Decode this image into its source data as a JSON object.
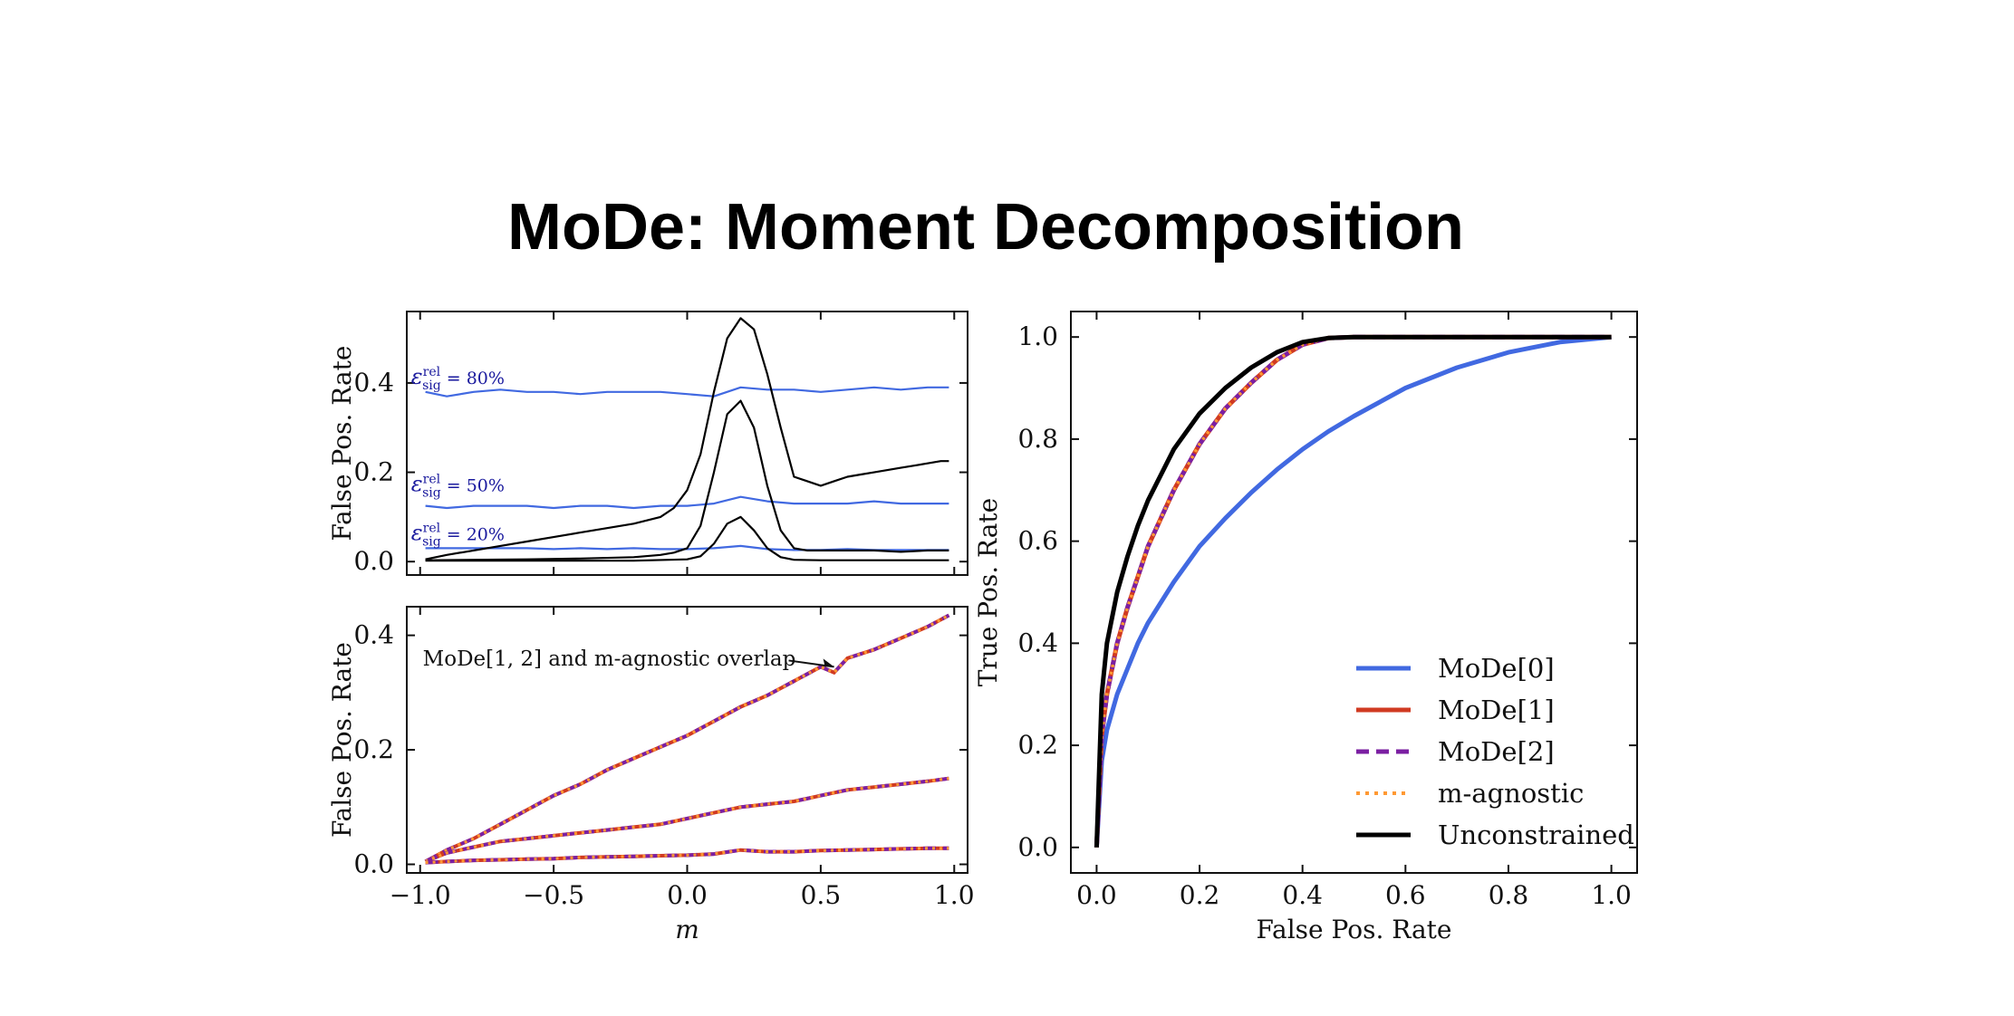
{
  "title": "MoDe: Moment Decomposition",
  "colors": {
    "mode0": "#4169e1",
    "mode1": "#d03a22",
    "mode2": "#7b1fa2",
    "agnostic": "#ff9933",
    "unconstrained": "#000000",
    "efficiency_label": "#1a1a9e"
  },
  "chart_data": [
    {
      "id": "top-left",
      "type": "line",
      "xlabel": "",
      "ylabel": "False Pos. Rate",
      "xlim": [
        -1.05,
        1.05
      ],
      "ylim": [
        -0.03,
        0.56
      ],
      "yticks": [
        0.0,
        0.2,
        0.4
      ],
      "ytick_labels": [
        "0.0",
        "0.2",
        "0.4"
      ],
      "xticks": [
        -1.0,
        -0.5,
        0.0,
        0.5,
        1.0
      ],
      "annotations": [
        {
          "text": "ε",
          "sup": "rel",
          "sub": "sig",
          "rest": " = 80%",
          "x": -1.0,
          "y": 0.41
        },
        {
          "text": "ε",
          "sup": "rel",
          "sub": "sig",
          "rest": " = 50%",
          "x": -1.0,
          "y": 0.17
        },
        {
          "text": "ε",
          "sup": "rel",
          "sub": "sig",
          "rest": " = 20%",
          "x": -1.0,
          "y": 0.06
        }
      ],
      "series": [
        {
          "style": "mode0-thin",
          "x": [
            -0.98,
            -0.9,
            -0.8,
            -0.7,
            -0.6,
            -0.5,
            -0.4,
            -0.3,
            -0.2,
            -0.1,
            0.0,
            0.1,
            0.2,
            0.3,
            0.4,
            0.5,
            0.6,
            0.7,
            0.8,
            0.9,
            0.98
          ],
          "values": [
            0.38,
            0.37,
            0.38,
            0.385,
            0.38,
            0.38,
            0.375,
            0.38,
            0.38,
            0.38,
            0.375,
            0.37,
            0.39,
            0.385,
            0.385,
            0.38,
            0.385,
            0.39,
            0.385,
            0.39,
            0.39
          ]
        },
        {
          "style": "mode0-thin",
          "x": [
            -0.98,
            -0.9,
            -0.8,
            -0.7,
            -0.6,
            -0.5,
            -0.4,
            -0.3,
            -0.2,
            -0.1,
            0.0,
            0.1,
            0.2,
            0.3,
            0.4,
            0.5,
            0.6,
            0.7,
            0.8,
            0.9,
            0.98
          ],
          "values": [
            0.125,
            0.12,
            0.125,
            0.125,
            0.125,
            0.12,
            0.125,
            0.125,
            0.12,
            0.125,
            0.125,
            0.13,
            0.145,
            0.135,
            0.13,
            0.13,
            0.13,
            0.135,
            0.13,
            0.13,
            0.13
          ]
        },
        {
          "style": "mode0-thin",
          "x": [
            -0.98,
            -0.9,
            -0.8,
            -0.7,
            -0.6,
            -0.5,
            -0.4,
            -0.3,
            -0.2,
            -0.1,
            0.0,
            0.1,
            0.2,
            0.3,
            0.4,
            0.5,
            0.6,
            0.7,
            0.8,
            0.9,
            0.98
          ],
          "values": [
            0.03,
            0.03,
            0.03,
            0.03,
            0.03,
            0.028,
            0.03,
            0.028,
            0.03,
            0.028,
            0.028,
            0.03,
            0.035,
            0.028,
            0.026,
            0.026,
            0.028,
            0.026,
            0.026,
            0.026,
            0.026
          ]
        },
        {
          "style": "unc-thin",
          "x": [
            -0.98,
            -0.9,
            -0.8,
            -0.7,
            -0.6,
            -0.5,
            -0.4,
            -0.3,
            -0.2,
            -0.1,
            -0.05,
            0.0,
            0.05,
            0.1,
            0.15,
            0.2,
            0.25,
            0.3,
            0.35,
            0.4,
            0.45,
            0.5,
            0.55,
            0.6,
            0.65,
            0.7,
            0.75,
            0.8,
            0.85,
            0.9,
            0.95,
            0.98
          ],
          "values": [
            0.005,
            0.015,
            0.025,
            0.035,
            0.045,
            0.055,
            0.065,
            0.075,
            0.085,
            0.1,
            0.12,
            0.16,
            0.24,
            0.38,
            0.5,
            0.545,
            0.52,
            0.42,
            0.3,
            0.19,
            0.18,
            0.17,
            0.18,
            0.19,
            0.195,
            0.2,
            0.205,
            0.21,
            0.215,
            0.22,
            0.225,
            0.225
          ]
        },
        {
          "style": "unc-thin",
          "x": [
            -0.98,
            -0.8,
            -0.6,
            -0.4,
            -0.2,
            -0.1,
            -0.05,
            0.0,
            0.05,
            0.1,
            0.15,
            0.2,
            0.25,
            0.3,
            0.35,
            0.4,
            0.45,
            0.5,
            0.6,
            0.7,
            0.8,
            0.9,
            0.98
          ],
          "values": [
            0.003,
            0.004,
            0.005,
            0.007,
            0.01,
            0.015,
            0.02,
            0.03,
            0.08,
            0.2,
            0.33,
            0.36,
            0.3,
            0.17,
            0.07,
            0.03,
            0.025,
            0.025,
            0.025,
            0.025,
            0.022,
            0.025,
            0.025
          ]
        },
        {
          "style": "unc-thin",
          "x": [
            -0.98,
            -0.8,
            -0.6,
            -0.4,
            -0.2,
            0.0,
            0.05,
            0.1,
            0.15,
            0.2,
            0.25,
            0.3,
            0.35,
            0.4,
            0.5,
            0.6,
            0.7,
            0.8,
            0.9,
            0.98
          ],
          "values": [
            0.002,
            0.002,
            0.002,
            0.002,
            0.002,
            0.005,
            0.012,
            0.04,
            0.085,
            0.1,
            0.07,
            0.03,
            0.01,
            0.004,
            0.003,
            0.003,
            0.003,
            0.003,
            0.003,
            0.003
          ]
        }
      ]
    },
    {
      "id": "bottom-left",
      "type": "line",
      "xlabel": "m",
      "ylabel": "False Pos. Rate",
      "xlim": [
        -1.05,
        1.05
      ],
      "ylim": [
        -0.015,
        0.45
      ],
      "yticks": [
        0.0,
        0.2,
        0.4
      ],
      "ytick_labels": [
        "0.0",
        "0.2",
        "0.4"
      ],
      "xticks": [
        -1.0,
        -0.5,
        0.0,
        0.5,
        1.0
      ],
      "xtick_labels": [
        "−1.0",
        "−0.5",
        "0.0",
        "0.5",
        "1.0"
      ],
      "annotation": {
        "text": "MoDe[1, 2] and m-agnostic overlap",
        "x": -0.99,
        "y": 0.36,
        "arrow_to": [
          0.55,
          0.345
        ]
      },
      "series": [
        {
          "name": "",
          "x": [
            -0.98,
            -0.9,
            -0.8,
            -0.7,
            -0.6,
            -0.5,
            -0.4,
            -0.3,
            -0.2,
            -0.1,
            0.0,
            0.1,
            0.2,
            0.3,
            0.4,
            0.5,
            0.55,
            0.6,
            0.7,
            0.8,
            0.9,
            0.98
          ],
          "values": [
            0.005,
            0.025,
            0.045,
            0.07,
            0.095,
            0.12,
            0.14,
            0.165,
            0.185,
            0.205,
            0.225,
            0.25,
            0.275,
            0.295,
            0.32,
            0.345,
            0.335,
            0.36,
            0.375,
            0.395,
            0.415,
            0.435
          ]
        },
        {
          "name": "",
          "x": [
            -0.98,
            -0.9,
            -0.8,
            -0.7,
            -0.6,
            -0.5,
            -0.4,
            -0.3,
            -0.2,
            -0.1,
            0.0,
            0.1,
            0.2,
            0.3,
            0.4,
            0.5,
            0.6,
            0.7,
            0.8,
            0.9,
            0.98
          ],
          "values": [
            0.005,
            0.02,
            0.03,
            0.04,
            0.045,
            0.05,
            0.055,
            0.06,
            0.065,
            0.07,
            0.08,
            0.09,
            0.1,
            0.105,
            0.11,
            0.12,
            0.13,
            0.135,
            0.14,
            0.145,
            0.15
          ]
        },
        {
          "name": "",
          "x": [
            -0.98,
            -0.9,
            -0.8,
            -0.7,
            -0.6,
            -0.5,
            -0.4,
            -0.3,
            -0.2,
            -0.1,
            0.0,
            0.1,
            0.2,
            0.3,
            0.4,
            0.5,
            0.6,
            0.7,
            0.8,
            0.9,
            0.98
          ],
          "values": [
            0.003,
            0.005,
            0.007,
            0.008,
            0.009,
            0.01,
            0.012,
            0.013,
            0.014,
            0.015,
            0.016,
            0.018,
            0.025,
            0.022,
            0.022,
            0.024,
            0.025,
            0.026,
            0.027,
            0.028,
            0.028
          ]
        }
      ]
    },
    {
      "id": "right",
      "type": "line",
      "xlabel": "False Pos. Rate",
      "ylabel": "True Pos. Rate",
      "xlim": [
        -0.05,
        1.05
      ],
      "ylim": [
        -0.05,
        1.05
      ],
      "xticks": [
        0.0,
        0.2,
        0.4,
        0.6,
        0.8,
        1.0
      ],
      "yticks": [
        0.0,
        0.2,
        0.4,
        0.6,
        0.8,
        1.0
      ],
      "tick_labels": [
        "0.0",
        "0.2",
        "0.4",
        "0.6",
        "0.8",
        "1.0"
      ],
      "legend_position": "bottom-right",
      "legend": [
        {
          "label": "MoDe[0]",
          "style": "solid",
          "color_key": "mode0"
        },
        {
          "label": "MoDe[1]",
          "style": "solid",
          "color_key": "mode1"
        },
        {
          "label": "MoDe[2]",
          "style": "dashed",
          "color_key": "mode2"
        },
        {
          "label": "m-agnostic",
          "style": "dotted",
          "color_key": "agnostic"
        },
        {
          "label": "Unconstrained",
          "style": "solid",
          "color_key": "unconstrained"
        }
      ],
      "series": [
        {
          "name": "MoDe[0]",
          "x": [
            0,
            0.01,
            0.02,
            0.04,
            0.06,
            0.08,
            0.1,
            0.15,
            0.2,
            0.25,
            0.3,
            0.35,
            0.4,
            0.45,
            0.5,
            0.6,
            0.7,
            0.8,
            0.9,
            1.0
          ],
          "values": [
            0,
            0.17,
            0.23,
            0.3,
            0.35,
            0.4,
            0.44,
            0.52,
            0.59,
            0.645,
            0.695,
            0.74,
            0.78,
            0.815,
            0.845,
            0.9,
            0.94,
            0.97,
            0.99,
            1.0
          ]
        },
        {
          "name": "MoDe[1]",
          "x": [
            0,
            0.01,
            0.02,
            0.04,
            0.06,
            0.08,
            0.1,
            0.15,
            0.2,
            0.25,
            0.3,
            0.35,
            0.4,
            0.45,
            0.5,
            0.6,
            0.7,
            0.8,
            0.9,
            1.0
          ],
          "values": [
            0,
            0.22,
            0.3,
            0.4,
            0.47,
            0.53,
            0.59,
            0.7,
            0.79,
            0.86,
            0.91,
            0.955,
            0.985,
            0.998,
            1.0,
            1.0,
            1.0,
            1.0,
            1.0,
            1.0
          ]
        },
        {
          "name": "MoDe[2]",
          "x": [
            0,
            0.01,
            0.02,
            0.04,
            0.06,
            0.08,
            0.1,
            0.15,
            0.2,
            0.25,
            0.3,
            0.35,
            0.4,
            0.45,
            0.5,
            0.6,
            0.7,
            0.8,
            0.9,
            1.0
          ],
          "values": [
            0,
            0.22,
            0.3,
            0.4,
            0.47,
            0.53,
            0.59,
            0.7,
            0.79,
            0.86,
            0.91,
            0.955,
            0.985,
            0.998,
            1.0,
            1.0,
            1.0,
            1.0,
            1.0,
            1.0
          ]
        },
        {
          "name": "m-agnostic",
          "x": [
            0,
            0.01,
            0.02,
            0.04,
            0.06,
            0.08,
            0.1,
            0.15,
            0.2,
            0.25,
            0.3,
            0.35,
            0.4,
            0.45,
            0.5,
            0.6,
            0.7,
            0.8,
            0.9,
            1.0
          ],
          "values": [
            0,
            0.22,
            0.3,
            0.4,
            0.47,
            0.53,
            0.59,
            0.7,
            0.79,
            0.86,
            0.91,
            0.955,
            0.985,
            0.998,
            1.0,
            1.0,
            1.0,
            1.0,
            1.0,
            1.0
          ]
        },
        {
          "name": "Unconstrained",
          "x": [
            0,
            0.01,
            0.02,
            0.04,
            0.06,
            0.08,
            0.1,
            0.15,
            0.2,
            0.25,
            0.3,
            0.35,
            0.4,
            0.45,
            0.5,
            0.6,
            0.7,
            0.8,
            0.9,
            1.0
          ],
          "values": [
            0,
            0.3,
            0.4,
            0.5,
            0.57,
            0.63,
            0.68,
            0.78,
            0.85,
            0.9,
            0.94,
            0.97,
            0.99,
            0.998,
            1.0,
            1.0,
            1.0,
            1.0,
            1.0,
            1.0
          ]
        }
      ]
    }
  ]
}
